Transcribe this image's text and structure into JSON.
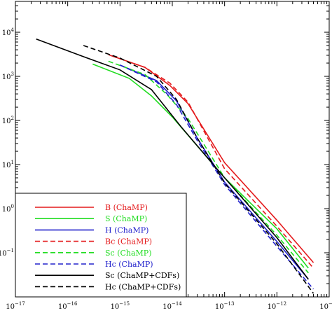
{
  "chart_data": {
    "type": "line",
    "title": "",
    "xlabel": "",
    "ylabel": "",
    "xscale": "log",
    "yscale": "log",
    "xlim": [
      1e-17,
      1e-11
    ],
    "ylim": [
      0.01,
      50000
    ],
    "grid": false,
    "legend_position": "bottom-left",
    "x_ticks": [
      {
        "value": 1e-17,
        "base": "10",
        "exp": "−17"
      },
      {
        "value": 1e-16,
        "base": "10",
        "exp": "−16"
      },
      {
        "value": 1e-15,
        "base": "10",
        "exp": "−15"
      },
      {
        "value": 1e-14,
        "base": "10",
        "exp": "−14"
      },
      {
        "value": 1e-13,
        "base": "10",
        "exp": "−13"
      },
      {
        "value": 1e-12,
        "base": "10",
        "exp": "−12"
      },
      {
        "value": 1e-11,
        "base": "10",
        "exp": "−11"
      }
    ],
    "y_ticks": [
      {
        "value": 0.1,
        "base": "10",
        "exp": "−1"
      },
      {
        "value": 1,
        "base": "10",
        "exp": "0"
      },
      {
        "value": 10,
        "base": "10",
        "exp": "1"
      },
      {
        "value": 100,
        "base": "10",
        "exp": "2"
      },
      {
        "value": 1000,
        "base": "10",
        "exp": "3"
      },
      {
        "value": 10000,
        "base": "10",
        "exp": "4"
      }
    ],
    "series": [
      {
        "name": "B (ChaMP)",
        "color": "#e41a1c",
        "dash": "solid",
        "points": [
          [
            6e-16,
            3100
          ],
          [
            3e-15,
            1600
          ],
          [
            9e-15,
            620
          ],
          [
            2e-14,
            240
          ],
          [
            1e-13,
            11
          ],
          [
            1e-12,
            0.55
          ],
          [
            5e-12,
            0.06
          ]
        ]
      },
      {
        "name": "S (ChaMP)",
        "color": "#22dd22",
        "dash": "solid",
        "points": [
          [
            3e-16,
            1900
          ],
          [
            1.5e-15,
            900
          ],
          [
            4e-15,
            360
          ],
          [
            1e-14,
            120
          ],
          [
            1e-13,
            5
          ],
          [
            1e-12,
            0.35
          ],
          [
            4e-12,
            0.045
          ]
        ]
      },
      {
        "name": "H (ChaMP)",
        "color": "#2222cc",
        "dash": "solid",
        "points": [
          [
            1e-15,
            1800
          ],
          [
            5e-15,
            800
          ],
          [
            1.2e-14,
            280
          ],
          [
            3e-14,
            40
          ],
          [
            1e-13,
            4
          ],
          [
            1e-12,
            0.18
          ],
          [
            4e-12,
            0.025
          ]
        ]
      },
      {
        "name": "Bc (ChaMP)",
        "color": "#e41a1c",
        "dash": "dashed",
        "points": [
          [
            7e-16,
            2900
          ],
          [
            3e-15,
            1600
          ],
          [
            9e-15,
            700
          ],
          [
            2e-14,
            260
          ],
          [
            1e-13,
            8
          ],
          [
            1e-12,
            0.4
          ],
          [
            5e-12,
            0.045
          ]
        ]
      },
      {
        "name": "Sc (ChaMP)",
        "color": "#22dd22",
        "dash": "dashed",
        "points": [
          [
            6e-16,
            2200
          ],
          [
            3e-15,
            1100
          ],
          [
            8e-15,
            380
          ],
          [
            2e-14,
            110
          ],
          [
            1e-13,
            5
          ],
          [
            1e-12,
            0.25
          ],
          [
            4e-12,
            0.035
          ]
        ]
      },
      {
        "name": "Hc (ChaMP)",
        "color": "#2222cc",
        "dash": "dashed",
        "points": [
          [
            1e-15,
            1800
          ],
          [
            5e-15,
            750
          ],
          [
            1.2e-14,
            230
          ],
          [
            3e-14,
            35
          ],
          [
            1e-13,
            3.5
          ],
          [
            1e-12,
            0.14
          ],
          [
            5e-12,
            0.015
          ]
        ]
      },
      {
        "name": "Sc (ChaMP+CDFs)",
        "color": "#000000",
        "dash": "solid",
        "points": [
          [
            2.5e-17,
            7000
          ],
          [
            2e-16,
            2800
          ],
          [
            1e-15,
            1400
          ],
          [
            4e-15,
            500
          ],
          [
            1.5e-14,
            70
          ],
          [
            1e-13,
            5
          ],
          [
            1e-12,
            0.22
          ],
          [
            4e-12,
            0.025
          ]
        ]
      },
      {
        "name": "Hc (ChaMP+CDFs)",
        "color": "#000000",
        "dash": "dashed",
        "points": [
          [
            2e-16,
            5000
          ],
          [
            1e-15,
            2600
          ],
          [
            5e-15,
            1000
          ],
          [
            1.2e-14,
            300
          ],
          [
            3e-14,
            40
          ],
          [
            1e-13,
            3.8
          ],
          [
            1e-12,
            0.16
          ],
          [
            5e-12,
            0.012
          ]
        ]
      }
    ]
  }
}
